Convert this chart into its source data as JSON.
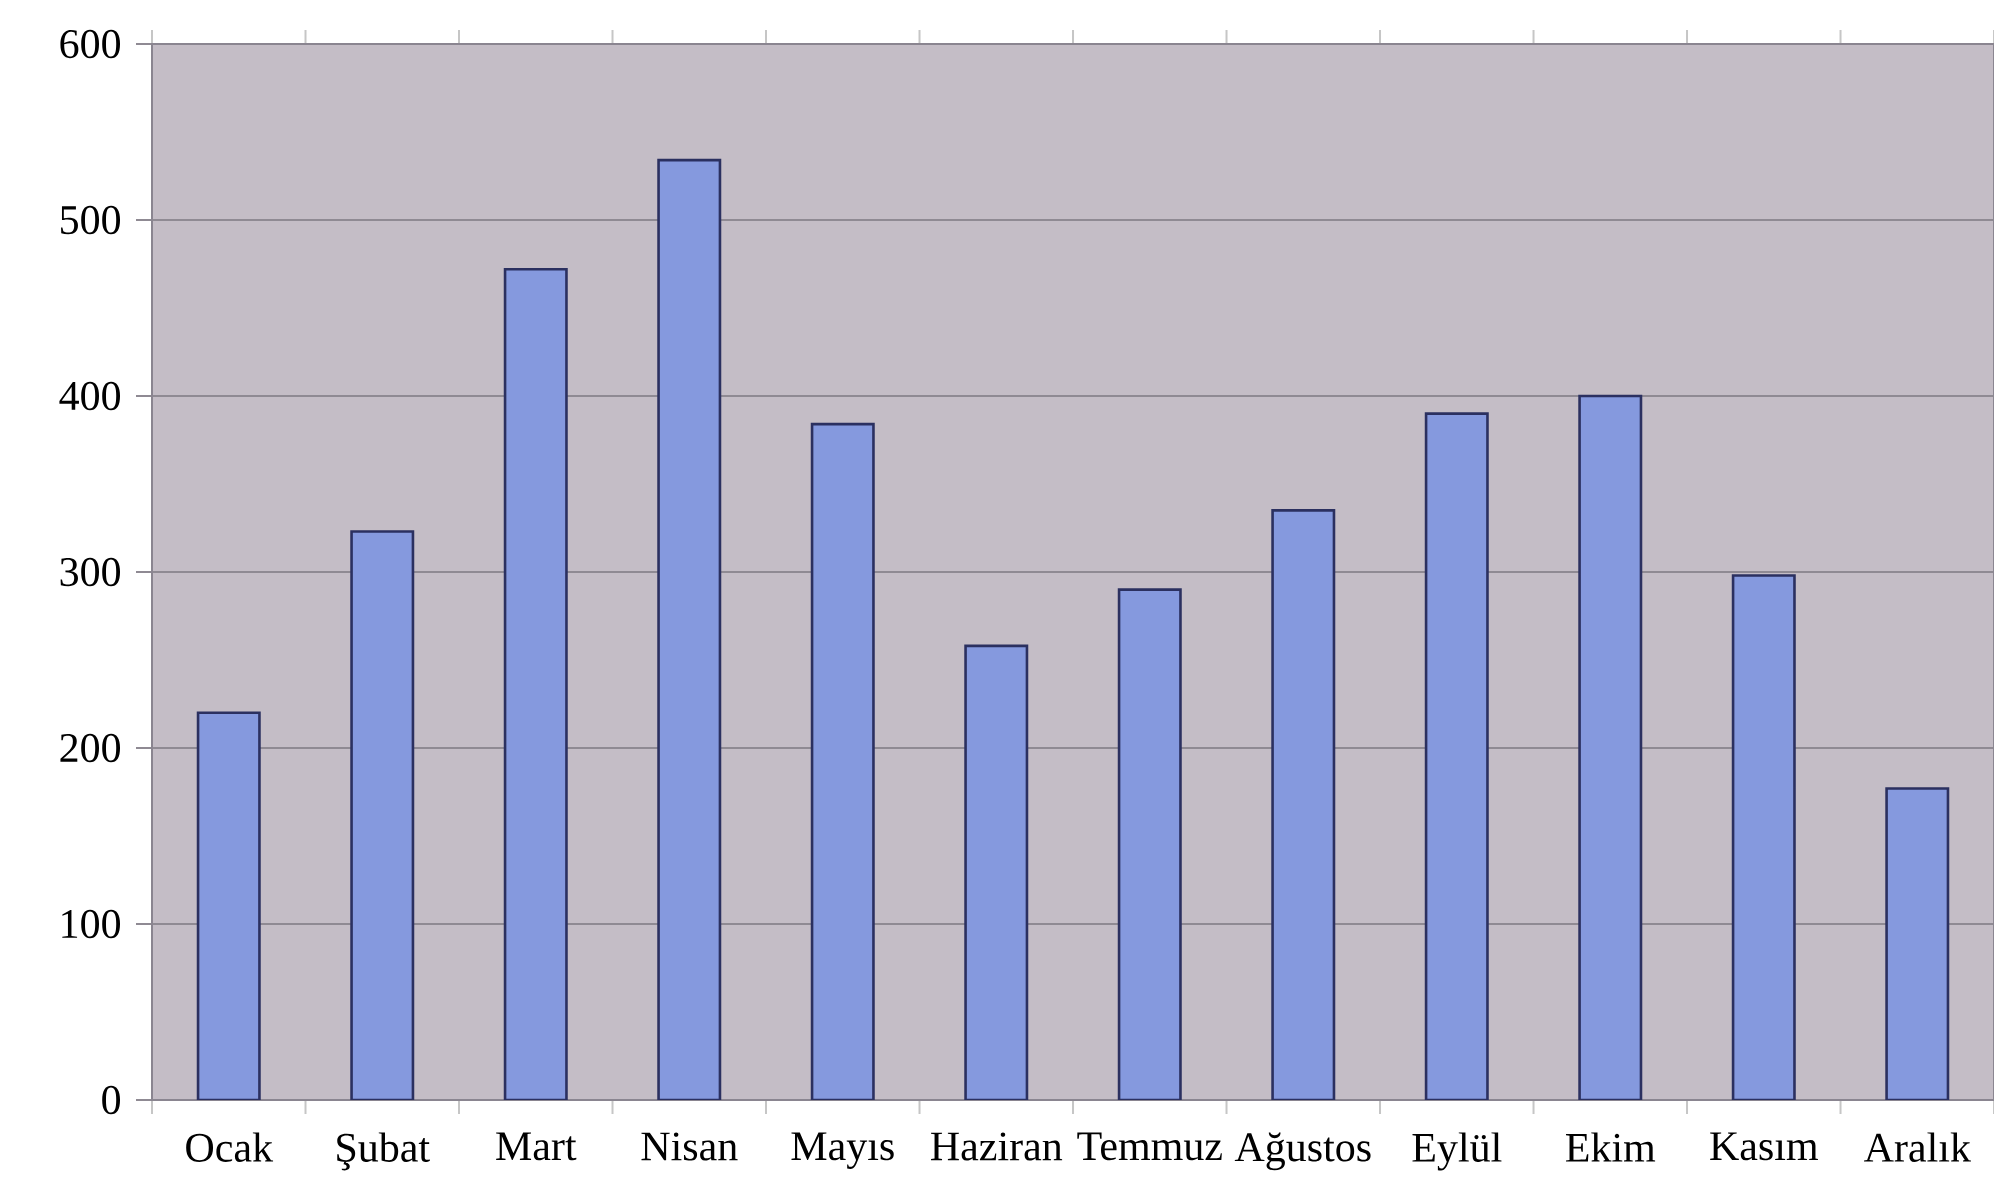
{
  "chart_data": {
    "type": "bar",
    "categories": [
      "Ocak",
      "Şubat",
      "Mart",
      "Nisan",
      "Mayıs",
      "Haziran",
      "Temmuz",
      "Ağustos",
      "Eylül",
      "Ekim",
      "Kasım",
      "Aralık"
    ],
    "values": [
      220,
      323,
      472,
      534,
      384,
      258,
      290,
      335,
      390,
      400,
      298,
      177
    ],
    "color": "#8599de",
    "ylim": [
      0,
      600
    ],
    "yticks": [
      0,
      100,
      200,
      300,
      400,
      500,
      600
    ],
    "grid": "y"
  }
}
